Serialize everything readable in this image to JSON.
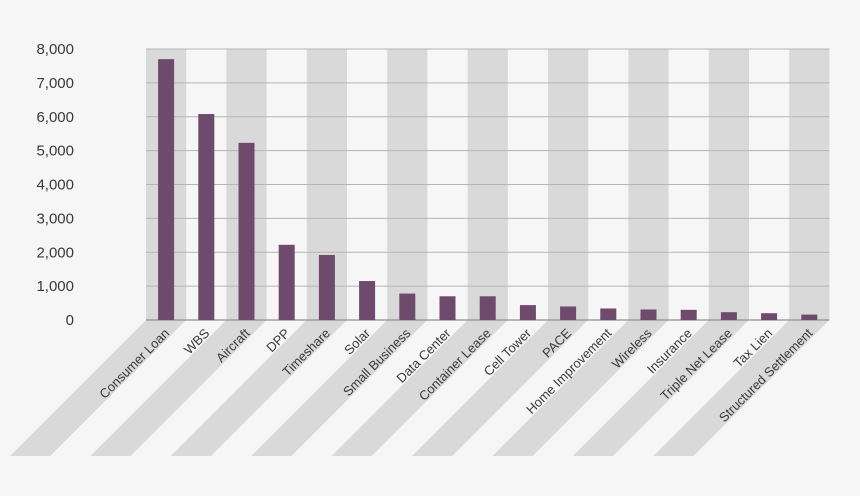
{
  "chart_data": {
    "type": "bar",
    "title": "",
    "xlabel": "",
    "ylabel": "",
    "ylim": [
      0,
      8000
    ],
    "yticks": [
      0,
      1000,
      2000,
      3000,
      4000,
      5000,
      6000,
      7000,
      8000
    ],
    "ytick_labels": [
      "0",
      "1,000",
      "2,000",
      "3,000",
      "4,000",
      "5,000",
      "6,000",
      "7,000",
      "8,000"
    ],
    "grid": true,
    "legend": "none",
    "categories": [
      "Consumer Loan",
      "WBS",
      "Aircraft",
      "DPP",
      "Timeshare",
      "Solar",
      "Small Business",
      "Data Center",
      "Container Lease",
      "Cell Tower",
      "PACE",
      "Home Improvement",
      "Wireless",
      "Insurance",
      "Triple Net Lease",
      "Tax Lien",
      "Structured Settlement"
    ],
    "values": [
      7700,
      6080,
      5230,
      2220,
      1920,
      1150,
      780,
      700,
      700,
      440,
      400,
      340,
      310,
      300,
      230,
      200,
      160
    ],
    "colors": {
      "bar": "#6e4a6c",
      "band": "#d9d9d9",
      "grid": "#b5b5b5",
      "axis": "#7a7a7a",
      "background": "#f6f6f6"
    }
  }
}
